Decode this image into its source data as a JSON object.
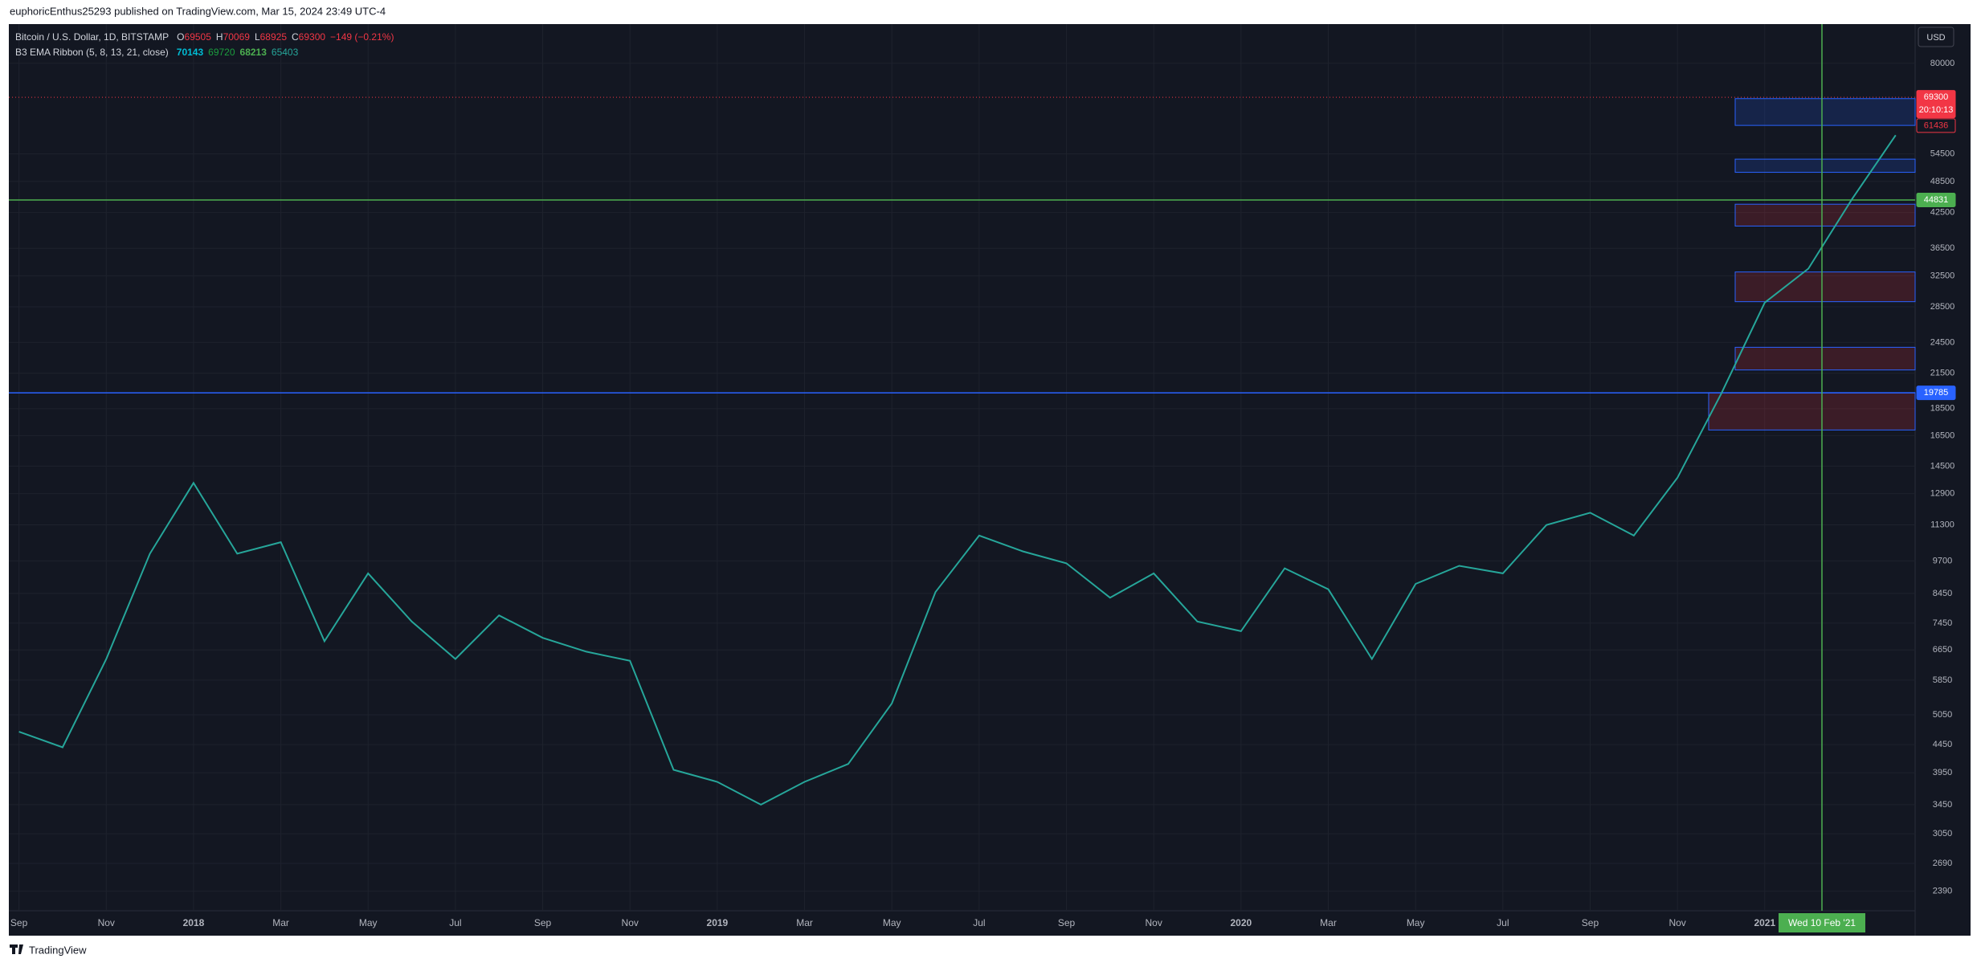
{
  "header": {
    "publisher": "euphoricEnthus25293 published on TradingView.com, Mar 15, 2024 23:49 UTC-4",
    "currency": "USD",
    "brand": "TradingView"
  },
  "chart_data": {
    "type": "line",
    "log_scale": true,
    "grid": true,
    "categories": [
      "Sep",
      null,
      "Nov",
      null,
      "2018",
      null,
      "Mar",
      null,
      "May",
      null,
      "Jul",
      null,
      "Sep",
      null,
      "Nov",
      null,
      "2019",
      null,
      "Mar",
      null,
      "May",
      null,
      "Jul",
      null,
      "Sep",
      null,
      "Nov",
      null,
      "2020",
      null,
      "Mar",
      null,
      "May",
      null,
      "Jul",
      null,
      "Sep",
      null,
      "Nov",
      null,
      "2021",
      null,
      null,
      null
    ],
    "series": [
      {
        "name": "Bitcoin / U.S. Dollar, 1D, BITSTAMP",
        "color": "#26a69a",
        "values": [
          4700,
          4400,
          6400,
          10000,
          13500,
          10000,
          10500,
          6900,
          9200,
          7500,
          6400,
          7700,
          7000,
          6600,
          6350,
          4000,
          3800,
          3450,
          3800,
          4100,
          5300,
          8500,
          10800,
          10100,
          9600,
          8300,
          9200,
          7500,
          7200,
          9400,
          8600,
          6400,
          8800,
          9500,
          9200,
          11300,
          11900,
          10800,
          13800,
          19700,
          29000,
          33500,
          45000,
          59000
        ]
      }
    ],
    "ohlc": [
      {
        "label": "O",
        "value": 69505
      },
      {
        "label": "H",
        "value": 70069
      },
      {
        "label": "L",
        "value": 68925
      },
      {
        "label": "C",
        "value": 69300
      }
    ],
    "change": "−149 (−0.21%)",
    "indicator": {
      "name": "B3 EMA Ribbon (5, 8, 13, 21, close)",
      "values": [
        70143,
        69720,
        68213,
        65403
      ],
      "colors": [
        "#00bcd4",
        "#1b9e3e",
        "#4caf50",
        "#26a69a"
      ]
    },
    "ylim": [
      2200,
      94500
    ],
    "yticks": [
      80000,
      54500,
      48500,
      42500,
      36500,
      32500,
      28500,
      24500,
      21500,
      18500,
      16500,
      14500,
      12900,
      11300,
      9700,
      8450,
      7450,
      6650,
      5850,
      5050,
      4450,
      3950,
      3450,
      3050,
      2690,
      2390
    ],
    "levels": [
      {
        "value": 69300,
        "color": "#f23645",
        "style": "dotted",
        "countdown": "20:10:13"
      },
      {
        "value": 61436,
        "color": "#f23645",
        "style": "outline"
      },
      {
        "value": 44831,
        "color": "#4caf50",
        "style": "solid"
      },
      {
        "value": 19785,
        "color": "#2962ff",
        "style": "solid"
      }
    ],
    "zones": [
      {
        "range": [
          61500,
          68900
        ],
        "color": "#2962ff"
      },
      {
        "range": [
          50400,
          53300
        ],
        "color": "#2962ff"
      },
      {
        "range": [
          40130,
          44030
        ],
        "color": "#f23645"
      },
      {
        "range": [
          29120,
          33030
        ],
        "color": "#f23645"
      },
      {
        "range": [
          21800,
          24000
        ],
        "color": "#f23645"
      },
      {
        "range": [
          16900,
          19800
        ],
        "color": "#f23645"
      }
    ],
    "crosshair_label": "Wed 10 Feb '21"
  }
}
